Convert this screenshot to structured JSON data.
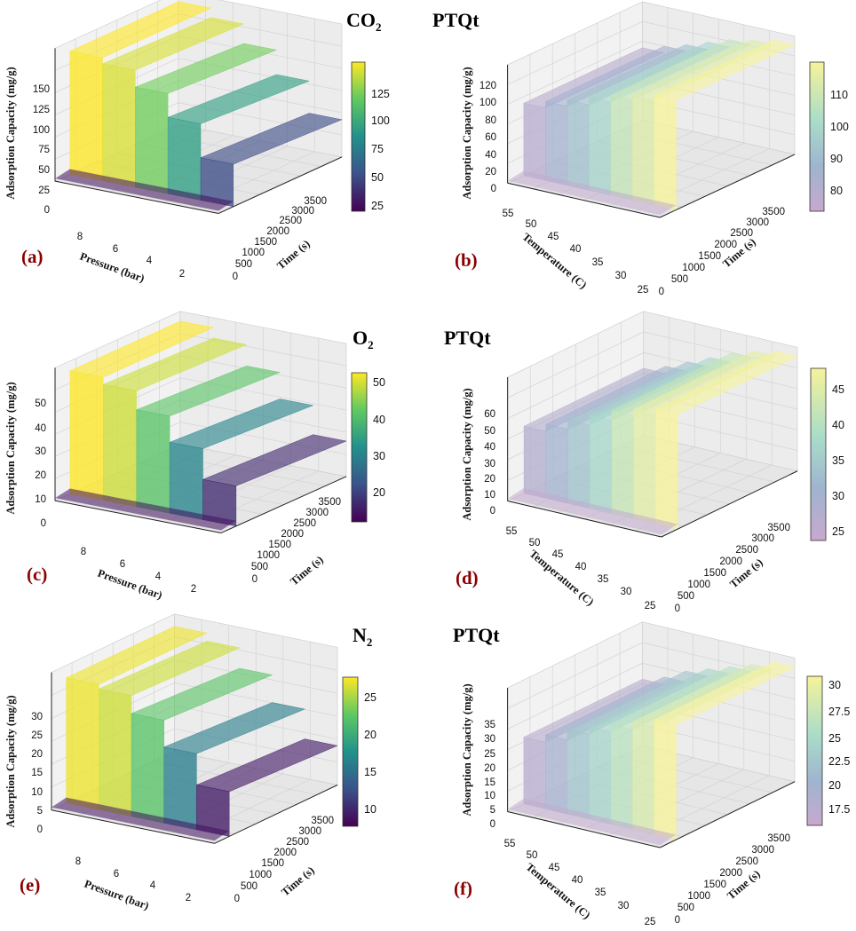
{
  "figure": {
    "row_titles": [
      {
        "gas": "CO",
        "subscript": "2",
        "material": "PTQt"
      },
      {
        "gas": "O",
        "subscript": "2",
        "material": "PTQt"
      },
      {
        "gas": "N",
        "subscript": "2",
        "material": "PTQt"
      }
    ]
  },
  "chart_data": [
    {
      "type": "surface3d",
      "panel_label": "(a)",
      "variable": "pressure",
      "zlabel": "Adsorption Capacity (mg/g)",
      "xlabel": "Pressure (bar)",
      "ylabel": "Time (s)",
      "z_ticks": [
        "0",
        "25",
        "50",
        "75",
        "100",
        "125",
        "150"
      ],
      "x_ticks": [
        "8",
        "6",
        "4",
        "2"
      ],
      "y_ticks": [
        "0",
        "500",
        "1000",
        "1500",
        "2000",
        "2500",
        "3000",
        "3500"
      ],
      "colorbar": {
        "colormap": "viridis",
        "ticks": [
          "125",
          "100",
          "75",
          "50",
          "25"
        ],
        "range": [
          22,
          145
        ]
      },
      "surface": {
        "x": [
          9,
          7,
          5,
          3,
          1
        ],
        "plateau_z": [
          145,
          138,
          118,
          90,
          50
        ]
      }
    },
    {
      "type": "surface3d",
      "panel_label": "(b)",
      "variable": "temperature",
      "zlabel": "Adsorption Capacity (mg/g)",
      "xlabel": "Temperature (C)",
      "ylabel": "Time (s)",
      "z_ticks": [
        "0",
        "20",
        "40",
        "60",
        "80",
        "100",
        "120"
      ],
      "x_ticks": [
        "55",
        "50",
        "45",
        "40",
        "35",
        "30",
        "25"
      ],
      "y_ticks": [
        "0",
        "500",
        "1000",
        "1500",
        "2000",
        "2500",
        "3000",
        "3500"
      ],
      "colorbar": {
        "colormap": "viridis_pale",
        "ticks": [
          "110",
          "100",
          "90",
          "80"
        ],
        "range": [
          72,
          118
        ]
      },
      "surface": {
        "x": [
          55,
          50,
          45,
          40,
          35,
          30,
          25
        ],
        "plateau_z": [
          78,
          85,
          92,
          100,
          108,
          113,
          118
        ]
      }
    },
    {
      "type": "surface3d",
      "panel_label": "(c)",
      "variable": "pressure",
      "zlabel": "Adsorption Capacity (mg/g)",
      "xlabel": "Pressure (bar)",
      "ylabel": "Time (s)",
      "z_ticks": [
        "0",
        "10",
        "20",
        "30",
        "40",
        "50"
      ],
      "x_ticks": [
        "8",
        "6",
        "4",
        "2"
      ],
      "y_ticks": [
        "0",
        "500",
        "1000",
        "1500",
        "2000",
        "2500",
        "3000",
        "3500"
      ],
      "colorbar": {
        "colormap": "viridis",
        "ticks": [
          "50",
          "40",
          "30",
          "20"
        ],
        "range": [
          12,
          52
        ]
      },
      "surface": {
        "x": [
          9,
          7,
          5,
          3,
          1
        ],
        "plateau_z": [
          52,
          49,
          41,
          30,
          17
        ]
      }
    },
    {
      "type": "surface3d",
      "panel_label": "(d)",
      "variable": "temperature",
      "zlabel": "Adsorption Capacity (mg/g)",
      "xlabel": "Temperature (C)",
      "ylabel": "Time (s)",
      "z_ticks": [
        "0",
        "10",
        "20",
        "30",
        "40",
        "50",
        "60"
      ],
      "x_ticks": [
        "55",
        "50",
        "45",
        "40",
        "35",
        "30",
        "25"
      ],
      "y_ticks": [
        "0",
        "500",
        "1000",
        "1500",
        "2000",
        "2500",
        "3000",
        "3500"
      ],
      "colorbar": {
        "colormap": "viridis_pale",
        "ticks": [
          "45",
          "40",
          "35",
          "30",
          "25"
        ],
        "range": [
          24,
          48
        ]
      },
      "surface": {
        "x": [
          55,
          50,
          45,
          40,
          35,
          30,
          25
        ],
        "plateau_z": [
          28,
          31,
          35,
          39,
          43,
          46,
          48
        ]
      }
    },
    {
      "type": "surface3d",
      "panel_label": "(e)",
      "variable": "pressure",
      "zlabel": "Adsorption Capacity (mg/g)",
      "xlabel": "Pressure (bar)",
      "ylabel": "Time (s)",
      "z_ticks": [
        "0",
        "5",
        "10",
        "15",
        "20",
        "25",
        "30"
      ],
      "x_ticks": [
        "8",
        "6",
        "4",
        "2"
      ],
      "y_ticks": [
        "0",
        "500",
        "1000",
        "1500",
        "2000",
        "2500",
        "3000",
        "3500"
      ],
      "colorbar": {
        "colormap": "viridis",
        "ticks": [
          "25",
          "20",
          "15",
          "10"
        ],
        "range": [
          8.5,
          28.5
        ]
      },
      "surface": {
        "x": [
          9,
          7,
          5,
          3,
          1
        ],
        "plateau_z": [
          28,
          27,
          23,
          17,
          10
        ]
      }
    },
    {
      "type": "surface3d",
      "panel_label": "(f)",
      "variable": "temperature",
      "zlabel": "Adsorption Capacity (mg/g)",
      "xlabel": "Temperature (C)",
      "ylabel": "Time (s)",
      "z_ticks": [
        "0",
        "5",
        "10",
        "15",
        "20",
        "25",
        "30",
        "35"
      ],
      "x_ticks": [
        "55",
        "50",
        "45",
        "40",
        "35",
        "30",
        "25"
      ],
      "y_ticks": [
        "0",
        "500",
        "1000",
        "1500",
        "2000",
        "2500",
        "3000",
        "3500"
      ],
      "colorbar": {
        "colormap": "viridis_pale",
        "ticks": [
          "30",
          "27.5",
          "25",
          "22.5",
          "20",
          "17.5"
        ],
        "range": [
          16,
          31
        ]
      },
      "surface": {
        "x": [
          55,
          50,
          45,
          40,
          35,
          30,
          25
        ],
        "plateau_z": [
          18,
          20,
          23,
          25,
          27,
          29,
          31
        ]
      }
    }
  ]
}
